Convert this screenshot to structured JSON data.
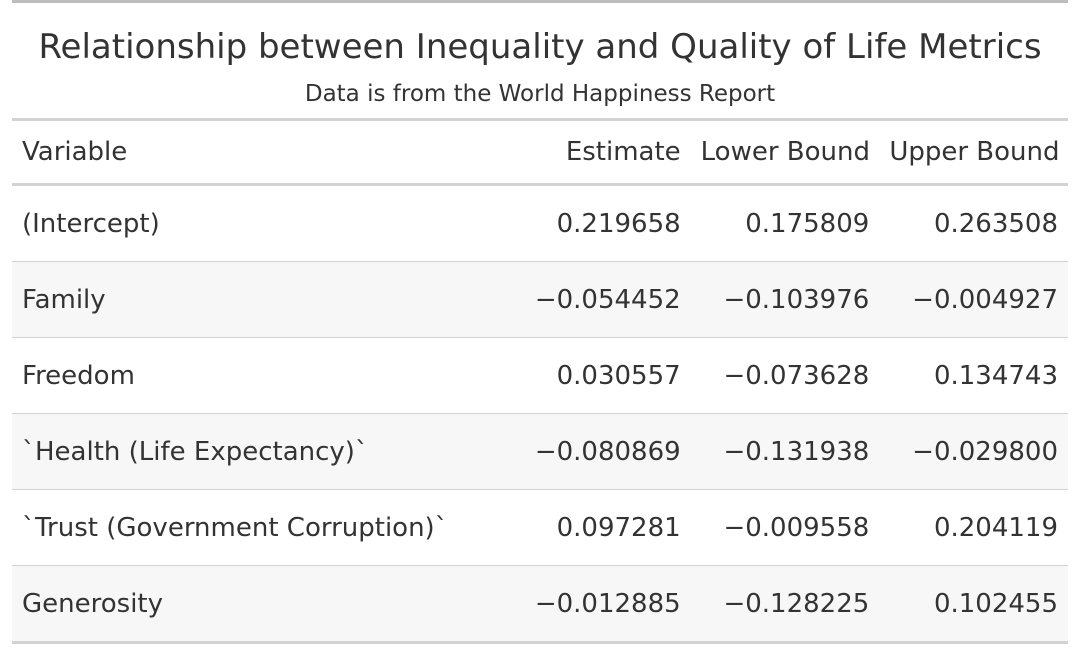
{
  "table": {
    "title": "Relationship between Inequality and Quality of Life Metrics",
    "subtitle": "Data is from the World Happiness Report",
    "columns": [
      "Variable",
      "Estimate",
      "Lower Bound",
      "Upper Bound"
    ],
    "rows": [
      [
        "(Intercept)",
        "0.219658",
        "0.175809",
        "0.263508"
      ],
      [
        "Family",
        "−0.054452",
        "−0.103976",
        "−0.004927"
      ],
      [
        "Freedom",
        "0.030557",
        "−0.073628",
        "0.134743"
      ],
      [
        "`Health (Life Expectancy)`",
        "−0.080869",
        "−0.131938",
        "−0.029800"
      ],
      [
        "`Trust (Government Corruption)`",
        "0.097281",
        "−0.009558",
        "0.204119"
      ],
      [
        "Generosity",
        "−0.012885",
        "−0.128225",
        "0.102455"
      ]
    ]
  }
}
